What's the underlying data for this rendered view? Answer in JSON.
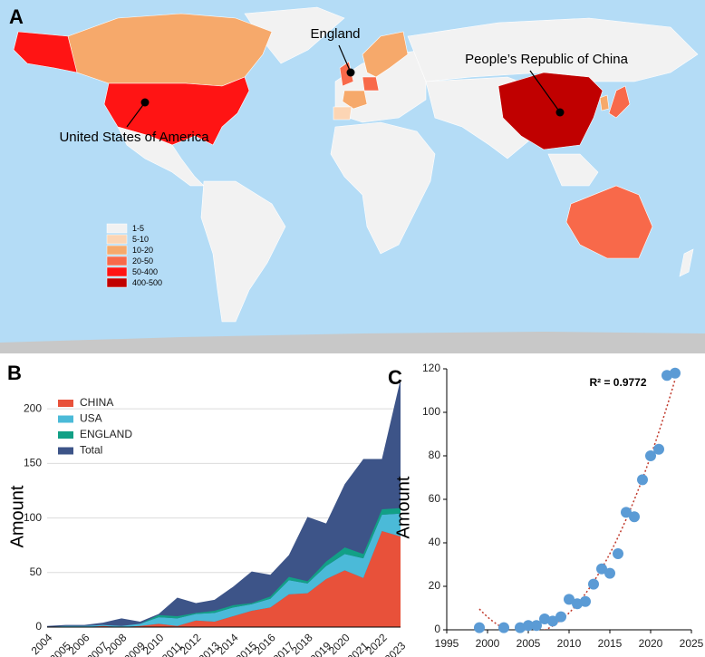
{
  "chart_data": [
    {
      "type": "map",
      "label": "A",
      "legend": [
        {
          "label": "1-5",
          "color": "#f2f2f2"
        },
        {
          "label": "5-10",
          "color": "#fcd5b4"
        },
        {
          "label": "10-20",
          "color": "#f6a96b"
        },
        {
          "label": "20-50",
          "color": "#f8694a"
        },
        {
          "label": "50-400",
          "color": "#ff1414"
        },
        {
          "label": "400-500",
          "color": "#c00000"
        }
      ],
      "annotations": [
        "England",
        "People’s Republic of China",
        "United States of America"
      ]
    },
    {
      "type": "area",
      "label": "B",
      "ylabel": "Amount",
      "categories": [
        "2004",
        "2005",
        "2006",
        "2007",
        "2008",
        "2009",
        "2010",
        "2011",
        "2012",
        "2013",
        "2014",
        "2015",
        "2016",
        "2017",
        "2018",
        "2019",
        "2020",
        "2021",
        "2022",
        "2023"
      ],
      "series": [
        {
          "name": "CHINA",
          "color": "#e8513a",
          "stack": true,
          "values": [
            0,
            0,
            0,
            1,
            0,
            1,
            3,
            1,
            6,
            5,
            10,
            15,
            18,
            30,
            31,
            44,
            52,
            45,
            88,
            83
          ]
        },
        {
          "name": "USA",
          "color": "#4bbad8",
          "stack": true,
          "values": [
            0,
            1,
            1,
            1,
            1,
            2,
            6,
            7,
            6,
            8,
            8,
            6,
            8,
            13,
            9,
            12,
            15,
            18,
            15,
            21
          ]
        },
        {
          "name": "ENGLAND",
          "color": "#12a086",
          "stack": true,
          "values": [
            0,
            0,
            0,
            0,
            0,
            0,
            2,
            2,
            1,
            2,
            2,
            1,
            2,
            3,
            2,
            4,
            6,
            4,
            5,
            5
          ]
        },
        {
          "name": "Total",
          "color": "#3d5488",
          "stack": false,
          "values": [
            1,
            2,
            2,
            4,
            8,
            5,
            12,
            27,
            22,
            25,
            37,
            51,
            48,
            66,
            101,
            95,
            131,
            154,
            154,
            227
          ]
        }
      ],
      "ylim": [
        0,
        240
      ],
      "yticks": [
        0,
        50,
        100,
        150,
        200
      ],
      "grid": true,
      "legend_position": "upper left"
    },
    {
      "type": "scatter",
      "label": "C",
      "ylabel": "Amount",
      "x": [
        1999,
        2002,
        2004,
        2005,
        2006,
        2007,
        2008,
        2009,
        2010,
        2011,
        2012,
        2013,
        2014,
        2015,
        2016,
        2017,
        2018,
        2019,
        2020,
        2021,
        2022,
        2023
      ],
      "values": [
        1,
        1,
        1,
        2,
        2,
        5,
        4,
        6,
        14,
        12,
        13,
        21,
        28,
        26,
        35,
        54,
        52,
        69,
        80,
        83,
        117,
        118
      ],
      "color": "#5b9bd5",
      "xlim": [
        1995,
        2025
      ],
      "xticks": [
        1995,
        2000,
        2005,
        2010,
        2015,
        2020,
        2025
      ],
      "ylim": [
        0,
        120
      ],
      "yticks": [
        0,
        20,
        40,
        60,
        80,
        100,
        120
      ],
      "annotation": "R² = 0.9772",
      "trendline": {
        "order": 2,
        "color": "#c0392b"
      }
    }
  ]
}
